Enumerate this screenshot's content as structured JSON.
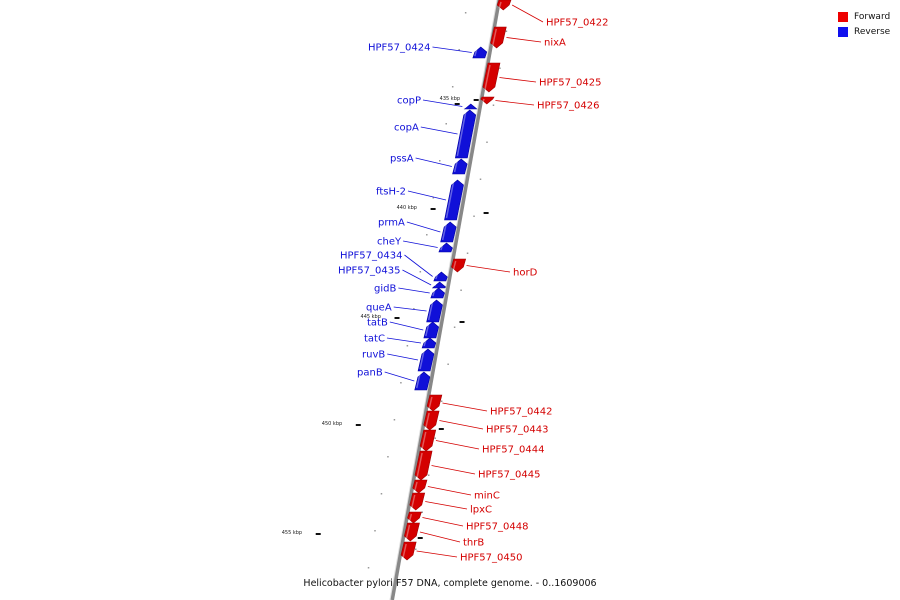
{
  "caption": "Helicobacter pylori F57 DNA, complete genome. - 0..1609006",
  "legend": [
    {
      "label": "Forward",
      "color": "#ee0000"
    },
    {
      "label": "Reverse",
      "color": "#1010ee"
    }
  ],
  "colors": {
    "forward": "#d40000",
    "reverse": "#1010d8",
    "backbone": "#888888"
  },
  "ticks": [
    {
      "label": "435 kbp"
    },
    {
      "label": "440 kbp"
    },
    {
      "label": "445 kbp"
    },
    {
      "label": "450 kbp"
    },
    {
      "label": "455 kbp"
    }
  ],
  "genes": [
    {
      "label": "HPF57_0422",
      "strand": "forward"
    },
    {
      "label": "nixA",
      "strand": "forward"
    },
    {
      "label": "HPF57_0424",
      "strand": "reverse"
    },
    {
      "label": "HPF57_0425",
      "strand": "forward"
    },
    {
      "label": "HPF57_0426",
      "strand": "forward"
    },
    {
      "label": "copP",
      "strand": "reverse"
    },
    {
      "label": "copA",
      "strand": "reverse"
    },
    {
      "label": "pssA",
      "strand": "reverse"
    },
    {
      "label": "ftsH-2",
      "strand": "reverse"
    },
    {
      "label": "prmA",
      "strand": "reverse"
    },
    {
      "label": "cheY",
      "strand": "reverse"
    },
    {
      "label": "horD",
      "strand": "forward"
    },
    {
      "label": "HPF57_0434",
      "strand": "reverse"
    },
    {
      "label": "HPF57_0435",
      "strand": "reverse"
    },
    {
      "label": "gidB",
      "strand": "reverse"
    },
    {
      "label": "queA",
      "strand": "reverse"
    },
    {
      "label": "tatB",
      "strand": "reverse"
    },
    {
      "label": "tatC",
      "strand": "reverse"
    },
    {
      "label": "ruvB",
      "strand": "reverse"
    },
    {
      "label": "panB",
      "strand": "reverse"
    },
    {
      "label": "HPF57_0442",
      "strand": "forward"
    },
    {
      "label": "HPF57_0443",
      "strand": "forward"
    },
    {
      "label": "HPF57_0444",
      "strand": "forward"
    },
    {
      "label": "HPF57_0445",
      "strand": "forward"
    },
    {
      "label": "minC",
      "strand": "forward"
    },
    {
      "label": "lpxC",
      "strand": "forward"
    },
    {
      "label": "HPF57_0448",
      "strand": "forward"
    },
    {
      "label": "thrB",
      "strand": "forward"
    },
    {
      "label": "HPF57_0450",
      "strand": "forward"
    }
  ]
}
